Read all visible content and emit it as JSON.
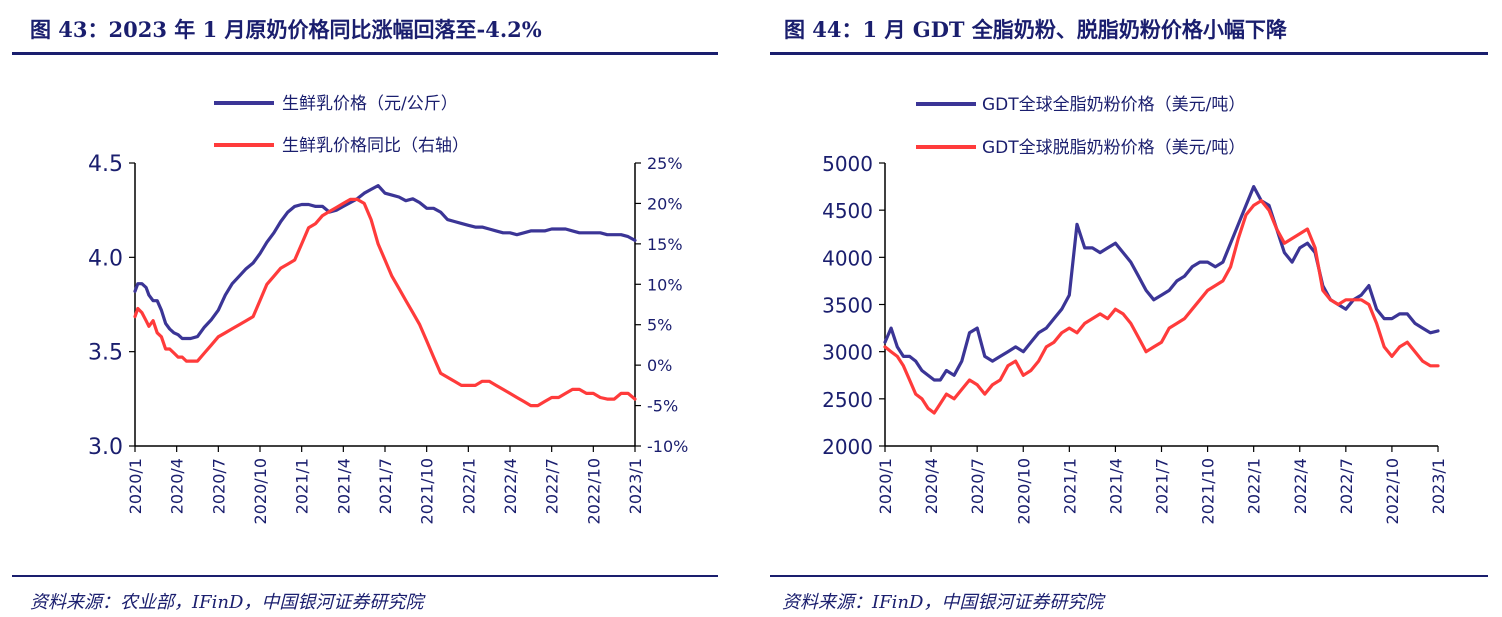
{
  "left": {
    "title": "图 43：2023 年 1 月原奶价格同比涨幅回落至-4.2%",
    "source": "资料来源：农业部，IFinD，中国银河证券研究院",
    "chart_data": {
      "type": "line",
      "x_ticks": [
        "2020/1",
        "2020/4",
        "2020/7",
        "2020/10",
        "2021/1",
        "2021/4",
        "2021/7",
        "2021/10",
        "2022/1",
        "2022/4",
        "2022/7",
        "2022/10",
        "2023/1"
      ],
      "y_left_ticks": [
        "3.0",
        "3.5",
        "4.0",
        "4.5"
      ],
      "y_right_ticks": [
        "-10%",
        "-5%",
        "0%",
        "5%",
        "10%",
        "15%",
        "20%",
        "25%"
      ],
      "ylim_left": [
        3.0,
        4.5
      ],
      "ylim_right": [
        -10,
        25
      ],
      "legend_position": "top-left",
      "series": [
        {
          "name": "生鲜乳价格（元/公斤）",
          "axis": "left",
          "color": "#3b3596",
          "x": [
            0,
            0.2,
            0.5,
            0.8,
            1,
            1.3,
            1.6,
            1.9,
            2.2,
            2.5,
            2.8,
            3.1,
            3.4,
            3.7,
            4,
            4.5,
            5,
            5.5,
            6,
            6.5,
            7,
            7.5,
            8,
            8.5,
            9,
            9.5,
            10,
            10.5,
            11,
            11.5,
            12,
            12.5,
            13,
            13.5,
            14,
            14.5,
            15,
            15.5,
            16,
            16.5,
            17,
            17.5,
            18,
            18.5,
            19,
            19.5,
            20,
            20.5,
            21,
            21.5,
            22,
            22.5,
            23,
            23.5,
            24,
            24.5,
            25,
            25.5,
            26,
            26.5,
            27,
            27.5,
            28,
            28.5,
            29,
            29.5,
            30,
            30.5,
            31,
            31.5,
            32,
            32.5,
            33,
            33.5,
            34,
            34.5,
            35,
            35.5,
            36
          ],
          "y": [
            3.82,
            3.86,
            3.86,
            3.84,
            3.8,
            3.77,
            3.77,
            3.72,
            3.65,
            3.62,
            3.6,
            3.59,
            3.57,
            3.57,
            3.57,
            3.58,
            3.63,
            3.67,
            3.72,
            3.8,
            3.86,
            3.9,
            3.94,
            3.97,
            4.02,
            4.08,
            4.13,
            4.19,
            4.24,
            4.27,
            4.28,
            4.28,
            4.27,
            4.27,
            4.24,
            4.25,
            4.27,
            4.29,
            4.31,
            4.34,
            4.36,
            4.38,
            4.34,
            4.33,
            4.32,
            4.3,
            4.31,
            4.29,
            4.26,
            4.26,
            4.24,
            4.2,
            4.19,
            4.18,
            4.17,
            4.16,
            4.16,
            4.15,
            4.14,
            4.13,
            4.13,
            4.12,
            4.13,
            4.14,
            4.14,
            4.14,
            4.15,
            4.15,
            4.15,
            4.14,
            4.13,
            4.13,
            4.13,
            4.13,
            4.12,
            4.12,
            4.12,
            4.11,
            4.09
          ]
        },
        {
          "name": "生鲜乳价格同比（右轴）",
          "axis": "right",
          "color": "#ff3b3b",
          "x": [
            0,
            0.2,
            0.5,
            0.8,
            1,
            1.3,
            1.6,
            1.9,
            2.2,
            2.5,
            2.8,
            3.1,
            3.4,
            3.7,
            4,
            4.5,
            5,
            5.5,
            6,
            6.5,
            7,
            7.5,
            8,
            8.5,
            9,
            9.5,
            10,
            10.5,
            11,
            11.5,
            12,
            12.5,
            13,
            13.5,
            14,
            14.5,
            15,
            15.5,
            16,
            16.5,
            17,
            17.5,
            18,
            18.5,
            19,
            19.5,
            20,
            20.5,
            21,
            21.5,
            22,
            22.5,
            23,
            23.5,
            24,
            24.5,
            25,
            25.5,
            26,
            26.5,
            27,
            27.5,
            28,
            28.5,
            29,
            29.5,
            30,
            30.5,
            31,
            31.5,
            32,
            32.5,
            33,
            33.5,
            34,
            34.5,
            35,
            35.5,
            36
          ],
          "y": [
            6,
            7,
            6.5,
            5.5,
            4.8,
            5.5,
            4,
            3.5,
            2,
            2,
            1.5,
            1,
            1,
            0.5,
            0.5,
            0.5,
            1.5,
            2.5,
            3.5,
            4,
            4.5,
            5,
            5.5,
            6,
            8,
            10,
            11,
            12,
            12.5,
            13,
            15,
            17,
            17.5,
            18.5,
            19,
            19.5,
            20,
            20.5,
            20.5,
            20,
            18,
            15,
            13,
            11,
            9.5,
            8,
            6.5,
            5,
            3,
            1,
            -1,
            -1.5,
            -2,
            -2.5,
            -2.5,
            -2.5,
            -2,
            -2,
            -2.5,
            -3,
            -3.5,
            -4,
            -4.5,
            -5,
            -5,
            -4.5,
            -4,
            -4,
            -3.5,
            -3,
            -3,
            -3.5,
            -3.5,
            -4,
            -4.2,
            -4.2,
            -3.5,
            -3.5,
            -4.2
          ]
        }
      ]
    }
  },
  "right": {
    "title": "图 44：1 月 GDT 全脂奶粉、脱脂奶粉价格小幅下降",
    "source": "资料来源：IFinD，中国银河证券研究院",
    "chart_data": {
      "type": "line",
      "x_ticks": [
        "2020/1",
        "2020/4",
        "2020/7",
        "2020/10",
        "2021/1",
        "2021/4",
        "2021/7",
        "2021/10",
        "2022/1",
        "2022/4",
        "2022/7",
        "2022/10",
        "2023/1"
      ],
      "y_ticks": [
        "2000",
        "2500",
        "3000",
        "3500",
        "4000",
        "4500",
        "5000"
      ],
      "ylim": [
        2000,
        5000
      ],
      "legend_position": "top-left",
      "series": [
        {
          "name": "GDT全球全脂奶粉价格（美元/吨）",
          "color": "#3b3596",
          "x": [
            0,
            0.4,
            0.8,
            1.2,
            1.6,
            2,
            2.4,
            2.8,
            3.2,
            3.6,
            4,
            4.5,
            5,
            5.5,
            6,
            6.5,
            7,
            7.5,
            8,
            8.5,
            9,
            9.5,
            10,
            10.5,
            11,
            11.5,
            12,
            12.5,
            13,
            13.5,
            14,
            14.5,
            15,
            15.5,
            16,
            16.5,
            17,
            17.5,
            18,
            18.5,
            19,
            19.5,
            20,
            20.5,
            21,
            21.5,
            22,
            22.5,
            23,
            23.5,
            24,
            24.5,
            25,
            25.5,
            26,
            26.5,
            27,
            27.5,
            28,
            28.5,
            29,
            29.5,
            30,
            30.5,
            31,
            31.5,
            32,
            32.5,
            33,
            33.5,
            34,
            34.5,
            35,
            35.5,
            36
          ],
          "y": [
            3100,
            3250,
            3050,
            2950,
            2950,
            2900,
            2800,
            2750,
            2700,
            2700,
            2800,
            2750,
            2900,
            3200,
            3250,
            2950,
            2900,
            2950,
            3000,
            3050,
            3000,
            3100,
            3200,
            3250,
            3350,
            3450,
            3600,
            4350,
            4100,
            4100,
            4050,
            4100,
            4150,
            4050,
            3950,
            3800,
            3650,
            3550,
            3600,
            3650,
            3750,
            3800,
            3900,
            3950,
            3950,
            3900,
            3950,
            4150,
            4350,
            4550,
            4750,
            4600,
            4550,
            4300,
            4050,
            3950,
            4100,
            4150,
            4050,
            3700,
            3550,
            3500,
            3450,
            3550,
            3600,
            3700,
            3450,
            3350,
            3350,
            3400,
            3400,
            3300,
            3250,
            3200,
            3220
          ]
        },
        {
          "name": "GDT全球脱脂奶粉价格（美元/吨）",
          "color": "#ff3b3b",
          "x": [
            0,
            0.4,
            0.8,
            1.2,
            1.6,
            2,
            2.4,
            2.8,
            3.2,
            3.6,
            4,
            4.5,
            5,
            5.5,
            6,
            6.5,
            7,
            7.5,
            8,
            8.5,
            9,
            9.5,
            10,
            10.5,
            11,
            11.5,
            12,
            12.5,
            13,
            13.5,
            14,
            14.5,
            15,
            15.5,
            16,
            16.5,
            17,
            17.5,
            18,
            18.5,
            19,
            19.5,
            20,
            20.5,
            21,
            21.5,
            22,
            22.5,
            23,
            23.5,
            24,
            24.5,
            25,
            25.5,
            26,
            26.5,
            27,
            27.5,
            28,
            28.5,
            29,
            29.5,
            30,
            30.5,
            31,
            31.5,
            32,
            32.5,
            33,
            33.5,
            34,
            34.5,
            35,
            35.5,
            36
          ],
          "y": [
            3050,
            3000,
            2950,
            2850,
            2700,
            2550,
            2500,
            2400,
            2350,
            2450,
            2550,
            2500,
            2600,
            2700,
            2650,
            2550,
            2650,
            2700,
            2850,
            2900,
            2750,
            2800,
            2900,
            3050,
            3100,
            3200,
            3250,
            3200,
            3300,
            3350,
            3400,
            3350,
            3450,
            3400,
            3300,
            3150,
            3000,
            3050,
            3100,
            3250,
            3300,
            3350,
            3450,
            3550,
            3650,
            3700,
            3750,
            3900,
            4200,
            4450,
            4550,
            4600,
            4500,
            4300,
            4150,
            4200,
            4250,
            4300,
            4100,
            3650,
            3550,
            3500,
            3550,
            3550,
            3550,
            3500,
            3300,
            3050,
            2950,
            3050,
            3100,
            3000,
            2900,
            2850,
            2850
          ]
        }
      ]
    }
  }
}
